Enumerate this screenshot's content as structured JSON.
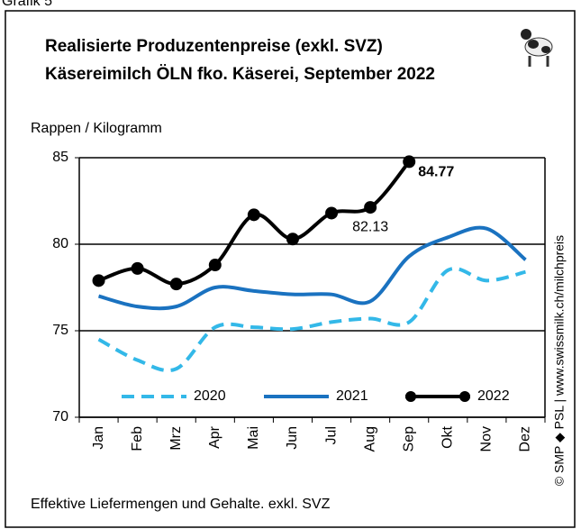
{
  "chart_data": {
    "type": "line",
    "header": "Grafik 5",
    "title": "Realisierte Produzentenpreise (exkl. SVZ)",
    "subtitle": "Käsereimilch ÖLN fko. Käserei, September 2022",
    "y_label": "Rappen / Kilogramm",
    "footnote": "Effektive Liefermengen und Gehalte. exkl. SVZ",
    "source": "© SMP ◆ PSL | www.swissmilk.ch/milchpreis",
    "categories": [
      "Jan",
      "Feb",
      "Mrz",
      "Apr",
      "Mai",
      "Jun",
      "Jul",
      "Aug",
      "Sep",
      "Okt",
      "Nov",
      "Dez"
    ],
    "series": [
      {
        "name": "2020",
        "color": "#33b8e8",
        "dash": true,
        "values": [
          74.5,
          73.3,
          72.8,
          75.2,
          75.2,
          75.1,
          75.5,
          75.7,
          75.5,
          78.5,
          77.9,
          78.4
        ]
      },
      {
        "name": "2021",
        "color": "#1a72c0",
        "values": [
          77.0,
          76.4,
          76.4,
          77.5,
          77.3,
          77.1,
          77.1,
          76.7,
          79.3,
          80.4,
          80.9,
          79.1
        ]
      },
      {
        "name": "2022",
        "color": "#000000",
        "marker": true,
        "values": [
          77.9,
          78.6,
          77.7,
          78.8,
          81.7,
          80.3,
          81.8,
          82.13,
          84.77,
          null,
          null,
          null
        ]
      }
    ],
    "ylim": [
      70,
      85
    ],
    "yticks": [
      70,
      75,
      80,
      85
    ],
    "grid": true
  }
}
